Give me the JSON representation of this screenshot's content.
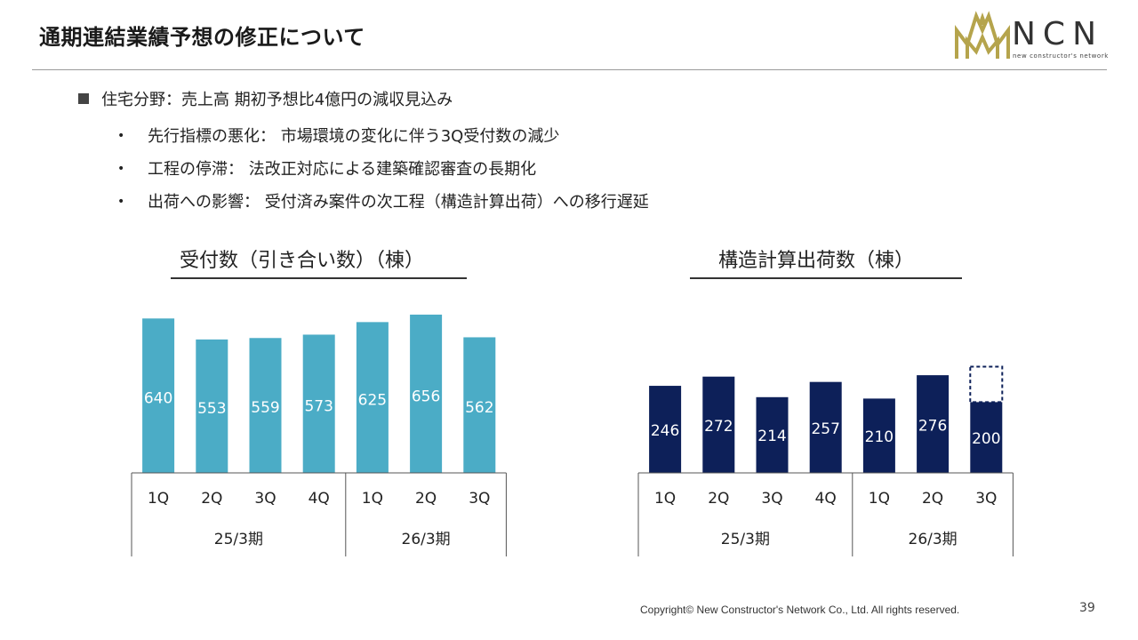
{
  "header": {
    "title": "通期連結業績予想の修正について",
    "logo_letters": "NCN",
    "logo_tagline": "new constructor's network"
  },
  "summary": {
    "lead": "住宅分野：売上高 期初予想比4億円の減収見込み",
    "bullets": [
      "先行指標の悪化： 市場環境の変化に伴う3Q受付数の減少",
      "工程の停滞： 法改正対応による建築確認審査の長期化",
      "出荷への影響： 受付済み案件の次工程（構造計算出荷）への移行遅延"
    ]
  },
  "chart_data": [
    {
      "type": "bar",
      "title": "受付数（引き合い数）（棟）",
      "color": "#4bacc6",
      "categories": [
        "1Q",
        "2Q",
        "3Q",
        "4Q",
        "1Q",
        "2Q",
        "3Q"
      ],
      "groups": [
        {
          "label": "25/3期",
          "count": 4
        },
        {
          "label": "26/3期",
          "count": 3
        }
      ],
      "values": [
        640,
        553,
        559,
        573,
        625,
        656,
        562
      ],
      "value_labels": [
        "640",
        "553",
        "559",
        "573",
        "625",
        "656",
        "562"
      ],
      "ylim": [
        0,
        700
      ]
    },
    {
      "type": "bar",
      "title": "構造計算出荷数（棟）",
      "color": "#0d2059",
      "categories": [
        "1Q",
        "2Q",
        "3Q",
        "4Q",
        "1Q",
        "2Q",
        "3Q"
      ],
      "groups": [
        {
          "label": "25/3期",
          "count": 4
        },
        {
          "label": "26/3期",
          "count": 3
        }
      ],
      "values": [
        246,
        272,
        214,
        257,
        210,
        276,
        200
      ],
      "value_labels": [
        "246",
        "272",
        "214",
        "257",
        "210",
        "276",
        "200"
      ],
      "dashed_extension": {
        "index": 6,
        "top_value": 300
      },
      "ylim": [
        0,
        540
      ]
    }
  ],
  "footer": {
    "copyright": "Copyright© New Constructor's Network Co., Ltd. All rights reserved.",
    "page_number": "39"
  }
}
